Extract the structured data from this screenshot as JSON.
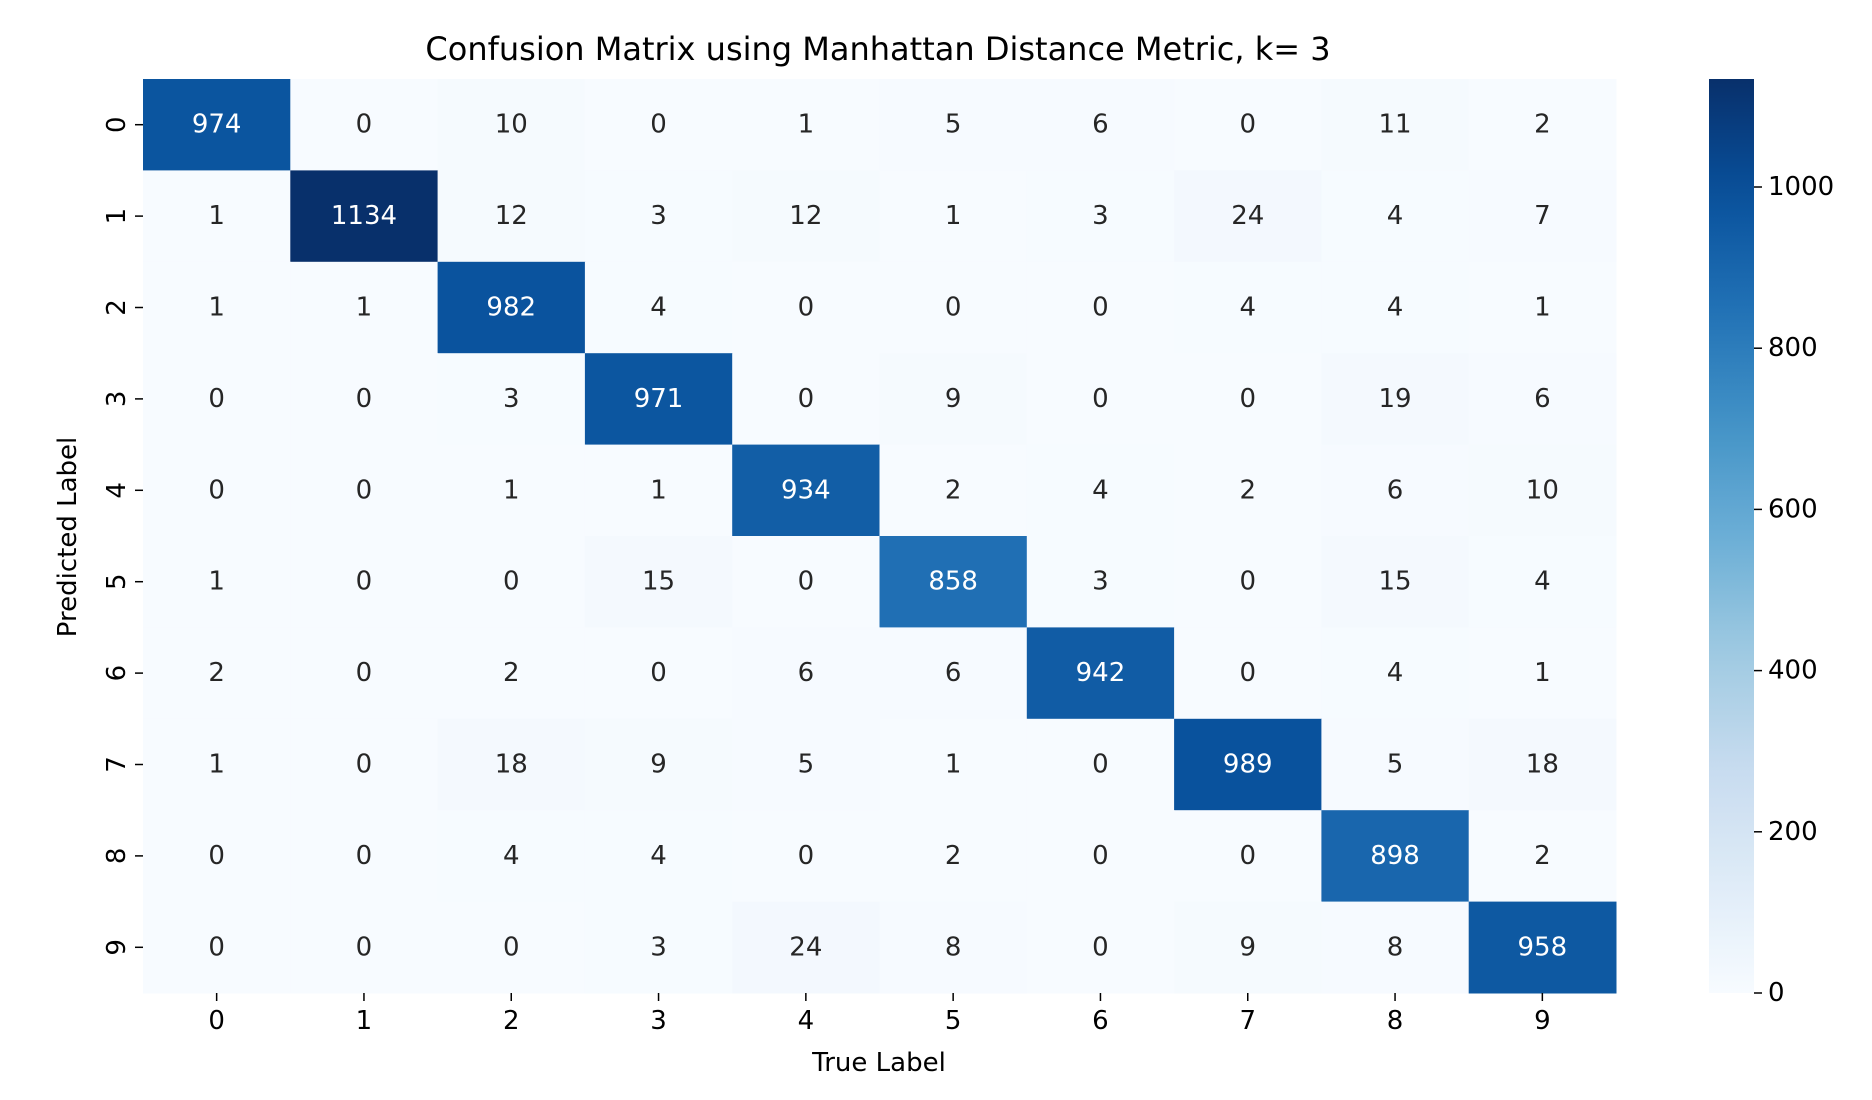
{
  "chart_data": {
    "type": "heatmap",
    "title": "Confusion Matrix using Manhattan Distance Metric, k= 3",
    "xlabel": "True Label",
    "ylabel": "Predicted Label",
    "x_tick_labels": [
      "0",
      "1",
      "2",
      "3",
      "4",
      "5",
      "6",
      "7",
      "8",
      "9"
    ],
    "y_tick_labels": [
      "0",
      "1",
      "2",
      "3",
      "4",
      "5",
      "6",
      "7",
      "8",
      "9"
    ],
    "values": [
      [
        974,
        0,
        10,
        0,
        1,
        5,
        6,
        0,
        11,
        2
      ],
      [
        1,
        1134,
        12,
        3,
        12,
        1,
        3,
        24,
        4,
        7
      ],
      [
        1,
        1,
        982,
        4,
        0,
        0,
        0,
        4,
        4,
        1
      ],
      [
        0,
        0,
        3,
        971,
        0,
        9,
        0,
        0,
        19,
        6
      ],
      [
        0,
        0,
        1,
        1,
        934,
        2,
        4,
        2,
        6,
        10
      ],
      [
        1,
        0,
        0,
        15,
        0,
        858,
        3,
        0,
        15,
        4
      ],
      [
        2,
        0,
        2,
        0,
        6,
        6,
        942,
        0,
        4,
        1
      ],
      [
        1,
        0,
        18,
        9,
        5,
        1,
        0,
        989,
        5,
        18
      ],
      [
        0,
        0,
        4,
        4,
        0,
        2,
        0,
        0,
        898,
        2
      ],
      [
        0,
        0,
        0,
        3,
        24,
        8,
        0,
        9,
        8,
        958
      ]
    ],
    "colorbar": {
      "min": 0,
      "max": 1134,
      "ticks": [
        0,
        200,
        400,
        600,
        800,
        1000
      ],
      "colormap": "Blues"
    },
    "annotation_colors": {
      "light_cell_text": "#262626",
      "dark_cell_text": "#ffffff"
    },
    "grid": false,
    "legend": "colorbar-right"
  }
}
